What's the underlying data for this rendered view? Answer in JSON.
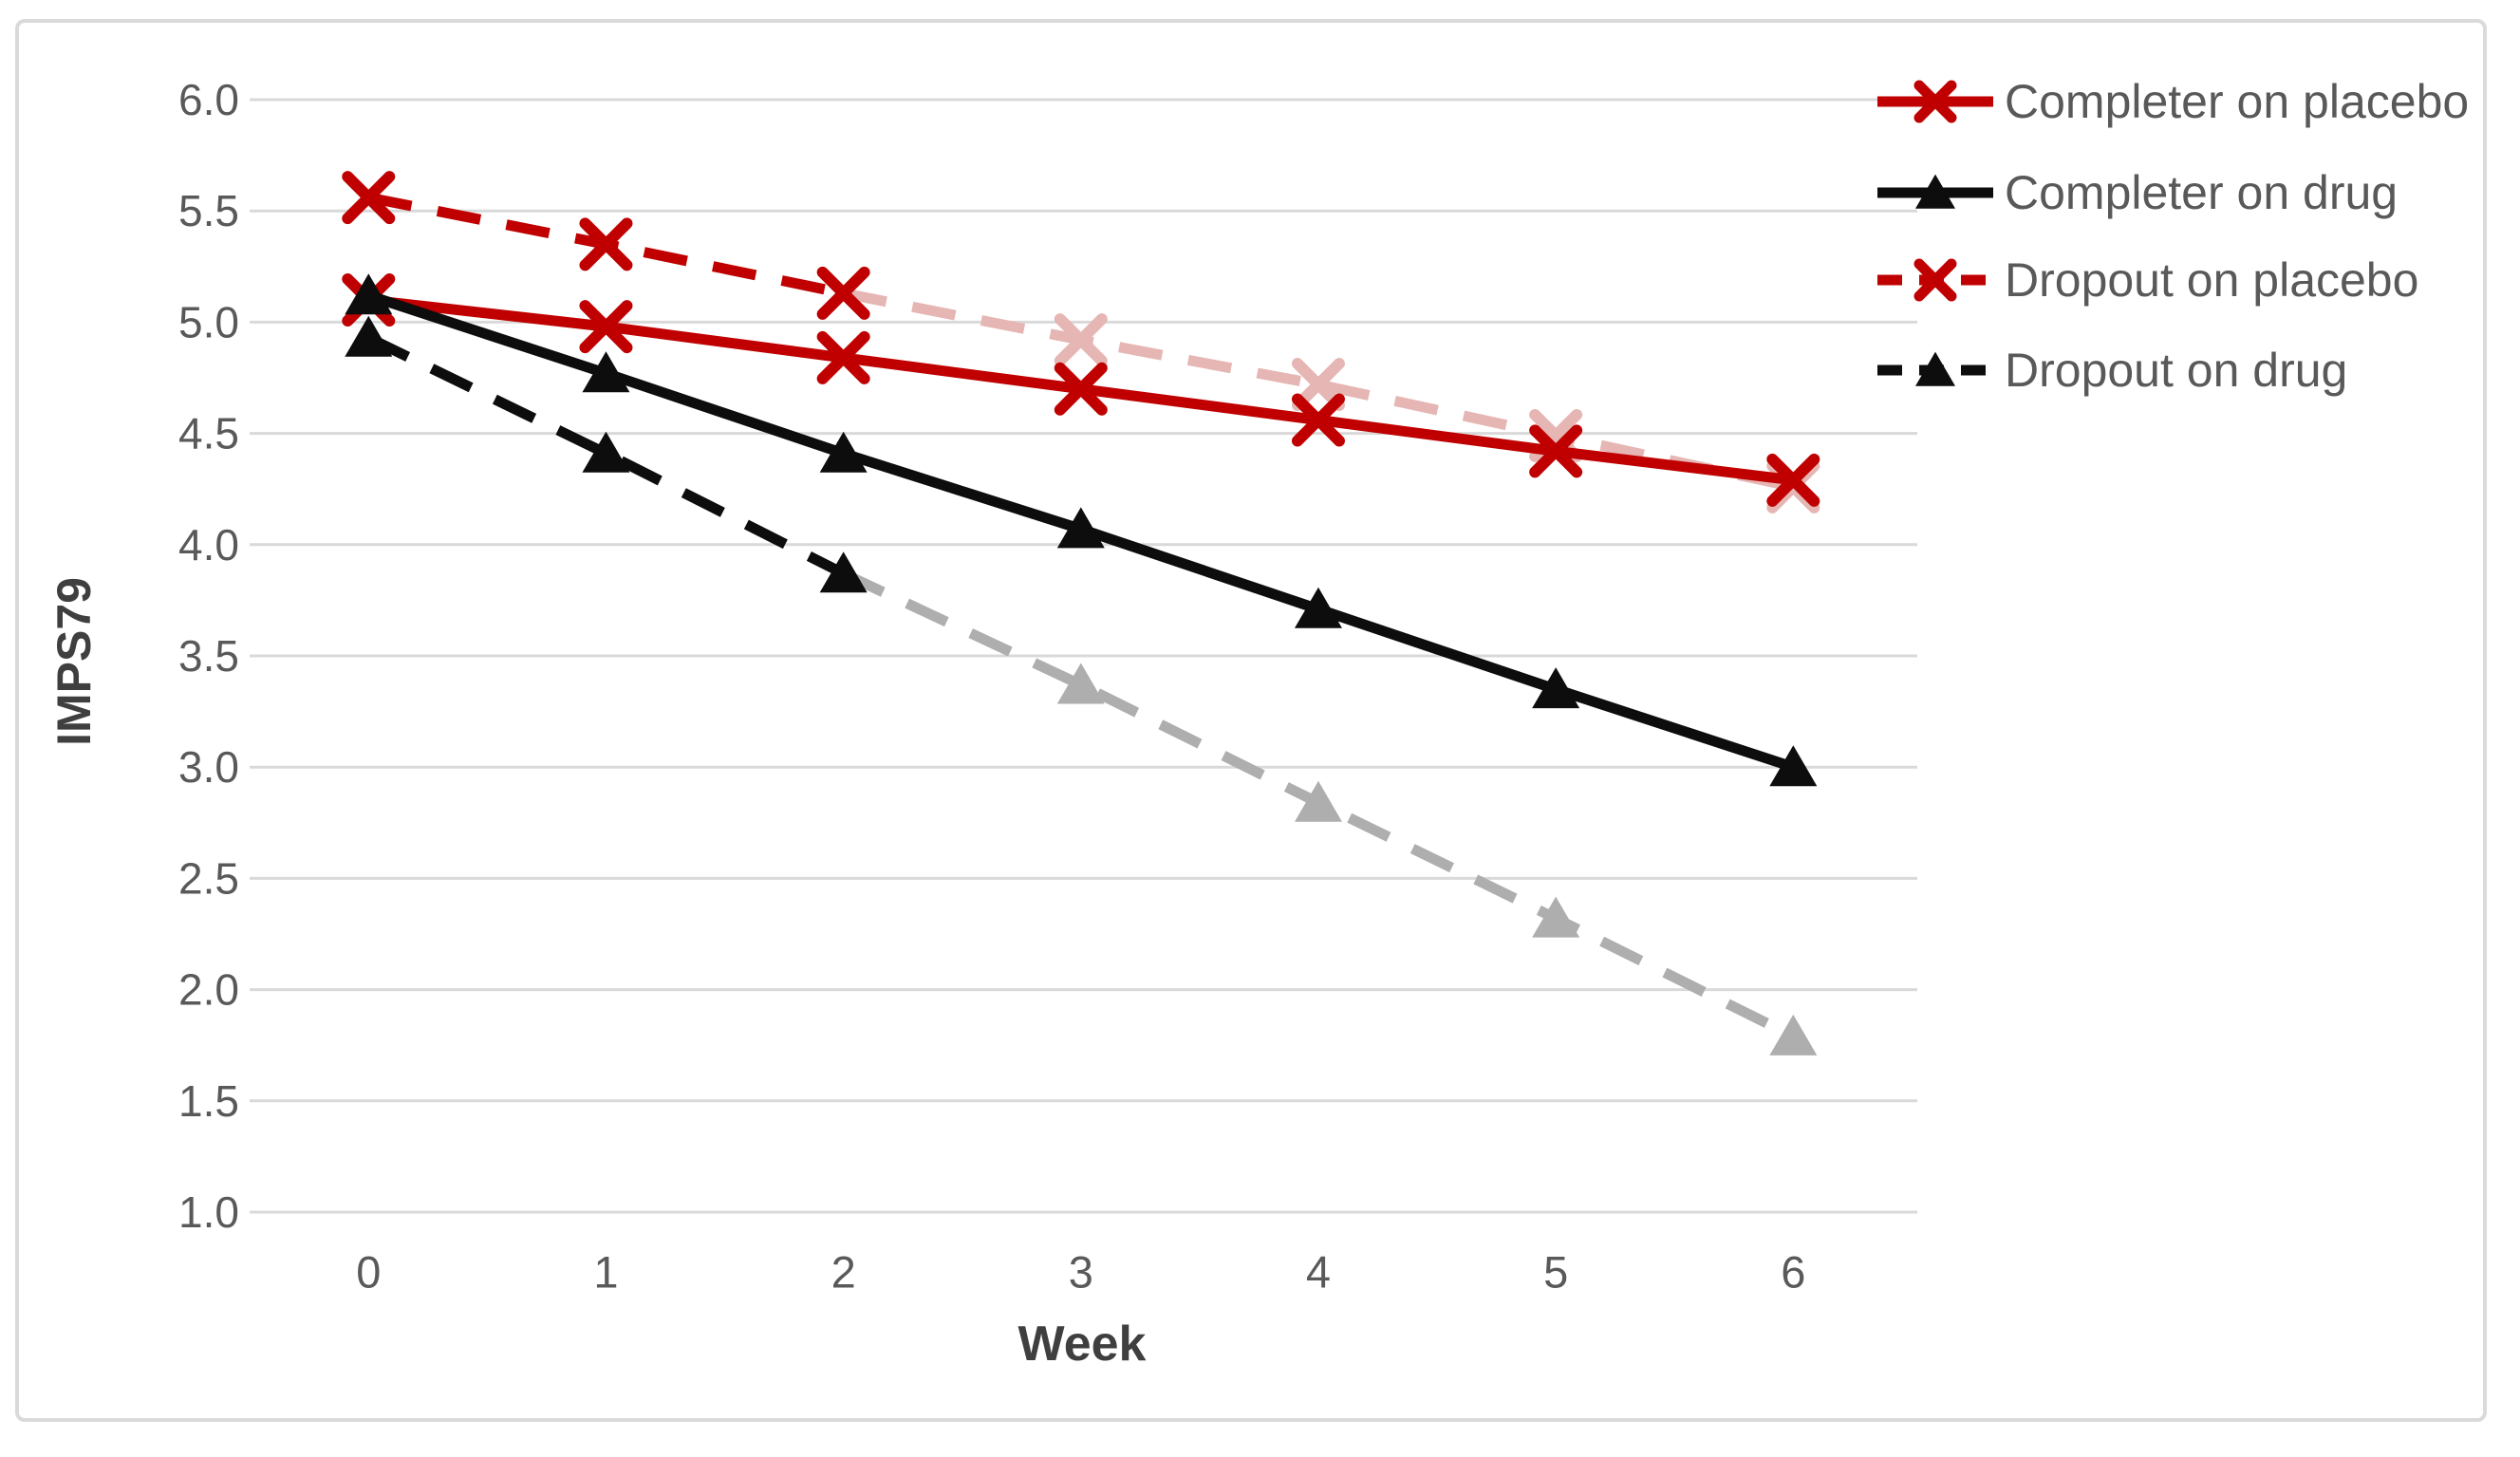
{
  "figure": {
    "description": "Line chart of IMPS79 scores across weeks for completers and dropouts on drug versus placebo"
  },
  "style": {
    "red": "#c00000",
    "faded_red": "#e5b6b3",
    "black": "#0d0d0d",
    "faded_black": "#aeaeae",
    "gridline_color": "#d9d9d9",
    "tick_label_color": "#595959",
    "axis_title_color": "#3f3f3f",
    "legend_text_color": "#595959",
    "frame_border_color": "#dadada",
    "background": "#ffffff"
  },
  "chart_data": {
    "type": "line",
    "x": [
      0,
      1,
      2,
      3,
      4,
      5,
      6
    ],
    "xlabel": "Week",
    "ylabel": "IMPS79",
    "ylim": [
      1.0,
      6.0
    ],
    "ytick_step": 0.5,
    "ytick_labels": [
      "6.0",
      "5.5",
      "5.0",
      "4.5",
      "4.0",
      "3.5",
      "3.0",
      "2.5",
      "2.0",
      "1.5",
      "1.0"
    ],
    "xtick_labels": [
      "0",
      "1",
      "2",
      "3",
      "4",
      "5",
      "6"
    ],
    "grid": true,
    "legend_position": "top-right",
    "series": [
      {
        "name": "Completer on placebo",
        "values": [
          5.1,
          4.98,
          4.84,
          4.7,
          4.56,
          4.42,
          4.29
        ],
        "color": "#c00000",
        "marker": "x",
        "line": "solid",
        "z": 2
      },
      {
        "name": "Completer on drug",
        "values": [
          5.12,
          4.77,
          4.41,
          4.07,
          3.71,
          3.35,
          3.0
        ],
        "color": "#0d0d0d",
        "marker": "triangle",
        "line": "solid",
        "z": 4
      },
      {
        "name": "Dropout on placebo",
        "values": [
          5.56,
          5.35,
          5.13,
          4.92,
          4.72,
          4.49,
          4.26
        ],
        "color": "#c00000",
        "faded_color": "#e5b6b3",
        "fade_from_week": 3,
        "marker": "x",
        "line": "dashed",
        "z": 1
      },
      {
        "name": "Dropout on drug",
        "values": [
          4.93,
          4.41,
          3.87,
          3.37,
          2.84,
          2.32,
          1.79
        ],
        "color": "#0d0d0d",
        "faded_color": "#aeaeae",
        "fade_from_week": 3,
        "marker": "triangle",
        "line": "dashed",
        "z": 3
      }
    ]
  }
}
